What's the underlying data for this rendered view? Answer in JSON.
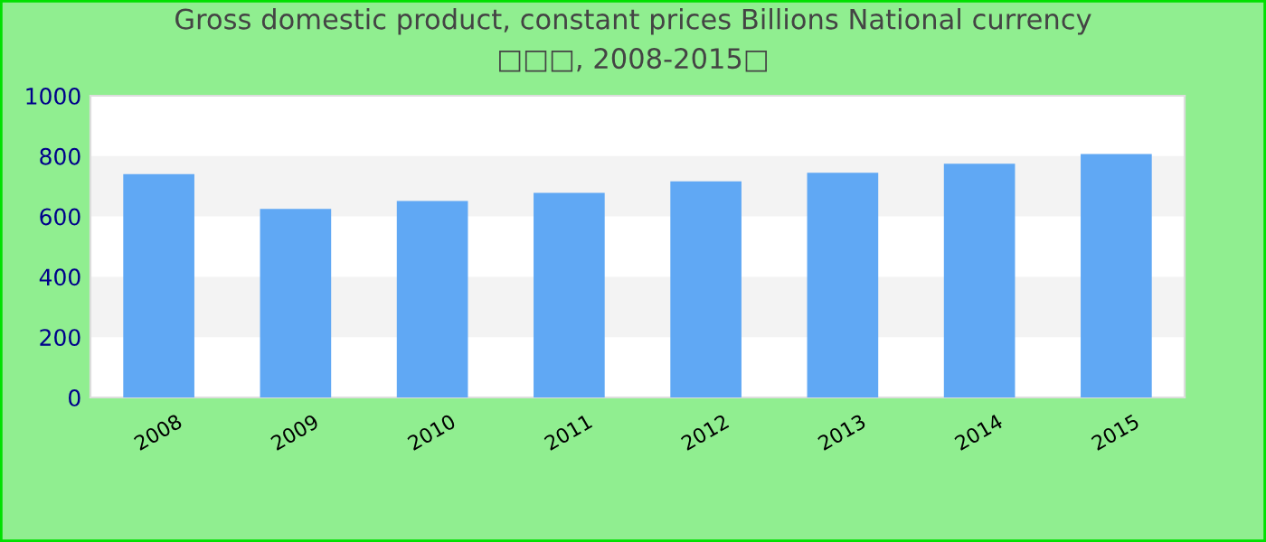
{
  "chart_data": {
    "type": "bar",
    "title": "Gross domestic product, constant prices Billions National currency\n□□□, 2008-2015□",
    "categories": [
      "2008",
      "2009",
      "2010",
      "2011",
      "2012",
      "2013",
      "2014",
      "2015"
    ],
    "values": [
      740,
      625,
      651,
      678,
      716,
      745,
      775,
      807
    ],
    "color": "#60a8f4",
    "ylim": [
      0,
      1000
    ],
    "yticks": [
      0,
      200,
      400,
      600,
      800,
      1000
    ],
    "bands": [
      {
        "axis": "y",
        "from": 200,
        "to": 400,
        "color": "#f3f3f3"
      },
      {
        "axis": "y",
        "from": 600,
        "to": 800,
        "color": "#f3f3f3"
      }
    ]
  }
}
